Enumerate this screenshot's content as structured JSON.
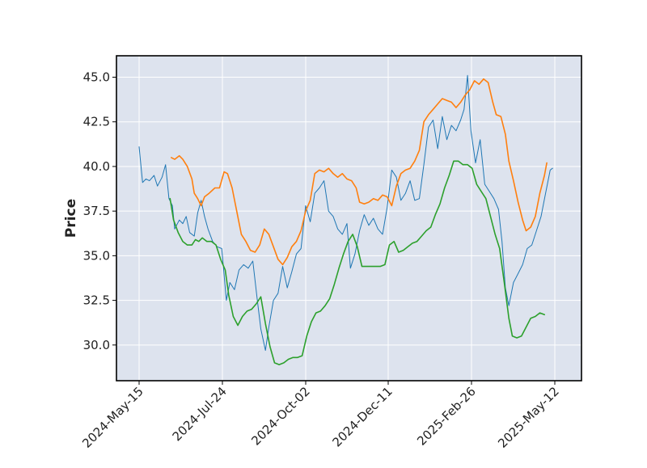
{
  "chart_data": {
    "type": "line",
    "title": "",
    "xlabel": "",
    "ylabel": "Price",
    "x_type": "date",
    "x_tick_labels": [
      "2024-May-15",
      "2024-Jul-24",
      "2024-Oct-02",
      "2024-Dec-11",
      "2025-Feb-26",
      "2025-May-12"
    ],
    "ylim": [
      28.0,
      46.2
    ],
    "y_ticks": [
      30.0,
      32.5,
      35.0,
      37.5,
      40.0,
      42.5,
      45.0
    ],
    "y_tick_labels": [
      "30.0",
      "32.5",
      "35.0",
      "37.5",
      "40.0",
      "42.5",
      "45.0"
    ],
    "grid": true,
    "legend": "none",
    "colors": {
      "background": "#dde3ee",
      "grid": "#ffffff",
      "frame": "#000000"
    },
    "series": [
      {
        "color": "#1f77b4",
        "stroke": "thin",
        "points": [
          [
            "2024-05-15",
            41.1
          ],
          [
            "2024-05-18",
            39.1
          ],
          [
            "2024-05-21",
            39.3
          ],
          [
            "2024-05-24",
            39.2
          ],
          [
            "2024-05-28",
            39.5
          ],
          [
            "2024-05-31",
            38.9
          ],
          [
            "2024-06-04",
            39.4
          ],
          [
            "2024-06-07",
            40.1
          ],
          [
            "2024-06-10",
            38.2
          ],
          [
            "2024-06-13",
            37.8
          ],
          [
            "2024-06-15",
            36.5
          ],
          [
            "2024-06-19",
            37.0
          ],
          [
            "2024-06-22",
            36.8
          ],
          [
            "2024-06-25",
            37.2
          ],
          [
            "2024-06-28",
            36.3
          ],
          [
            "2024-07-02",
            36.1
          ],
          [
            "2024-07-05",
            37.4
          ],
          [
            "2024-07-08",
            38.1
          ],
          [
            "2024-07-11",
            37.2
          ],
          [
            "2024-07-14",
            36.5
          ],
          [
            "2024-07-18",
            35.8
          ],
          [
            "2024-07-22",
            35.5
          ],
          [
            "2024-07-26",
            35.4
          ],
          [
            "2024-07-30",
            32.5
          ],
          [
            "2024-08-02",
            33.5
          ],
          [
            "2024-08-06",
            33.1
          ],
          [
            "2024-08-10",
            34.2
          ],
          [
            "2024-08-14",
            34.5
          ],
          [
            "2024-08-18",
            34.3
          ],
          [
            "2024-08-22",
            34.7
          ],
          [
            "2024-08-26",
            32.5
          ],
          [
            "2024-08-29",
            30.9
          ],
          [
            "2024-09-02",
            29.7
          ],
          [
            "2024-09-05",
            31.0
          ],
          [
            "2024-09-09",
            32.5
          ],
          [
            "2024-09-13",
            32.9
          ],
          [
            "2024-09-17",
            34.4
          ],
          [
            "2024-09-21",
            33.2
          ],
          [
            "2024-09-25",
            34.1
          ],
          [
            "2024-09-29",
            35.1
          ],
          [
            "2024-10-03",
            35.4
          ],
          [
            "2024-10-07",
            37.8
          ],
          [
            "2024-10-11",
            36.9
          ],
          [
            "2024-10-15",
            38.5
          ],
          [
            "2024-10-19",
            38.8
          ],
          [
            "2024-10-23",
            39.2
          ],
          [
            "2024-10-27",
            37.5
          ],
          [
            "2024-10-31",
            37.2
          ],
          [
            "2024-11-04",
            36.5
          ],
          [
            "2024-11-08",
            36.2
          ],
          [
            "2024-11-12",
            36.8
          ],
          [
            "2024-11-15",
            34.3
          ],
          [
            "2024-11-19",
            35.1
          ],
          [
            "2024-11-23",
            36.4
          ],
          [
            "2024-11-27",
            37.3
          ],
          [
            "2024-12-01",
            36.7
          ],
          [
            "2024-12-05",
            37.1
          ],
          [
            "2024-12-09",
            36.5
          ],
          [
            "2024-12-13",
            36.2
          ],
          [
            "2024-12-17",
            37.7
          ],
          [
            "2024-12-21",
            39.8
          ],
          [
            "2024-12-25",
            39.4
          ],
          [
            "2024-12-29",
            38.1
          ],
          [
            "2025-01-02",
            38.5
          ],
          [
            "2025-01-06",
            39.2
          ],
          [
            "2025-01-10",
            38.1
          ],
          [
            "2025-01-14",
            38.2
          ],
          [
            "2025-01-18",
            40.1
          ],
          [
            "2025-01-22",
            42.2
          ],
          [
            "2025-01-26",
            42.6
          ],
          [
            "2025-01-30",
            41.0
          ],
          [
            "2025-02-03",
            42.8
          ],
          [
            "2025-02-07",
            41.5
          ],
          [
            "2025-02-11",
            42.3
          ],
          [
            "2025-02-15",
            42.0
          ],
          [
            "2025-02-19",
            42.6
          ],
          [
            "2025-02-22",
            43.2
          ],
          [
            "2025-02-25",
            45.1
          ],
          [
            "2025-02-28",
            42.0
          ],
          [
            "2025-03-04",
            40.2
          ],
          [
            "2025-03-08",
            41.5
          ],
          [
            "2025-03-12",
            39.0
          ],
          [
            "2025-03-16",
            38.6
          ],
          [
            "2025-03-20",
            38.2
          ],
          [
            "2025-03-24",
            37.6
          ],
          [
            "2025-03-27",
            35.8
          ],
          [
            "2025-03-30",
            33.2
          ],
          [
            "2025-04-02",
            32.2
          ],
          [
            "2025-04-06",
            33.5
          ],
          [
            "2025-04-10",
            34.0
          ],
          [
            "2025-04-14",
            34.5
          ],
          [
            "2025-04-18",
            35.4
          ],
          [
            "2025-04-22",
            35.6
          ],
          [
            "2025-04-26",
            36.4
          ],
          [
            "2025-04-30",
            37.2
          ],
          [
            "2025-05-04",
            38.5
          ],
          [
            "2025-05-08",
            39.8
          ],
          [
            "2025-05-10",
            39.9
          ]
        ]
      },
      {
        "color": "#ff7f0e",
        "stroke": "medium",
        "points": [
          [
            "2024-06-12",
            40.5
          ],
          [
            "2024-06-15",
            40.4
          ],
          [
            "2024-06-19",
            40.6
          ],
          [
            "2024-06-22",
            40.4
          ],
          [
            "2024-06-26",
            40.0
          ],
          [
            "2024-06-30",
            39.3
          ],
          [
            "2024-07-02",
            38.5
          ],
          [
            "2024-07-05",
            38.2
          ],
          [
            "2024-07-08",
            37.8
          ],
          [
            "2024-07-11",
            38.3
          ],
          [
            "2024-07-15",
            38.5
          ],
          [
            "2024-07-20",
            38.8
          ],
          [
            "2024-07-24",
            38.8
          ],
          [
            "2024-07-28",
            39.7
          ],
          [
            "2024-07-31",
            39.6
          ],
          [
            "2024-08-04",
            38.8
          ],
          [
            "2024-08-08",
            37.5
          ],
          [
            "2024-08-12",
            36.2
          ],
          [
            "2024-08-16",
            35.8
          ],
          [
            "2024-08-20",
            35.3
          ],
          [
            "2024-08-24",
            35.2
          ],
          [
            "2024-08-28",
            35.6
          ],
          [
            "2024-09-01",
            36.5
          ],
          [
            "2024-09-05",
            36.2
          ],
          [
            "2024-09-09",
            35.5
          ],
          [
            "2024-09-13",
            34.8
          ],
          [
            "2024-09-17",
            34.5
          ],
          [
            "2024-09-21",
            34.9
          ],
          [
            "2024-09-25",
            35.5
          ],
          [
            "2024-09-29",
            35.8
          ],
          [
            "2024-10-03",
            36.4
          ],
          [
            "2024-10-07",
            37.5
          ],
          [
            "2024-10-11",
            38.1
          ],
          [
            "2024-10-15",
            39.6
          ],
          [
            "2024-10-19",
            39.8
          ],
          [
            "2024-10-23",
            39.7
          ],
          [
            "2024-10-27",
            39.9
          ],
          [
            "2024-10-31",
            39.6
          ],
          [
            "2024-11-04",
            39.4
          ],
          [
            "2024-11-08",
            39.6
          ],
          [
            "2024-11-12",
            39.3
          ],
          [
            "2024-11-16",
            39.2
          ],
          [
            "2024-11-20",
            38.8
          ],
          [
            "2024-11-23",
            38.0
          ],
          [
            "2024-11-27",
            37.9
          ],
          [
            "2024-12-01",
            38.0
          ],
          [
            "2024-12-05",
            38.2
          ],
          [
            "2024-12-09",
            38.1
          ],
          [
            "2024-12-13",
            38.4
          ],
          [
            "2024-12-17",
            38.3
          ],
          [
            "2024-12-21",
            37.8
          ],
          [
            "2024-12-25",
            38.9
          ],
          [
            "2024-12-29",
            39.6
          ],
          [
            "2025-01-02",
            39.8
          ],
          [
            "2025-01-06",
            39.9
          ],
          [
            "2025-01-10",
            40.3
          ],
          [
            "2025-01-14",
            40.9
          ],
          [
            "2025-01-18",
            42.5
          ],
          [
            "2025-01-22",
            42.9
          ],
          [
            "2025-01-26",
            43.2
          ],
          [
            "2025-01-30",
            43.5
          ],
          [
            "2025-02-03",
            43.8
          ],
          [
            "2025-02-07",
            43.7
          ],
          [
            "2025-02-11",
            43.6
          ],
          [
            "2025-02-15",
            43.3
          ],
          [
            "2025-02-19",
            43.6
          ],
          [
            "2025-02-23",
            44.0
          ],
          [
            "2025-02-27",
            44.3
          ],
          [
            "2025-03-03",
            44.8
          ],
          [
            "2025-03-07",
            44.6
          ],
          [
            "2025-03-11",
            44.9
          ],
          [
            "2025-03-15",
            44.7
          ],
          [
            "2025-03-19",
            43.6
          ],
          [
            "2025-03-22",
            42.9
          ],
          [
            "2025-03-26",
            42.8
          ],
          [
            "2025-03-30",
            41.8
          ],
          [
            "2025-04-02",
            40.3
          ],
          [
            "2025-04-06",
            39.2
          ],
          [
            "2025-04-10",
            38.0
          ],
          [
            "2025-04-14",
            37.0
          ],
          [
            "2025-04-17",
            36.4
          ],
          [
            "2025-04-21",
            36.6
          ],
          [
            "2025-04-25",
            37.2
          ],
          [
            "2025-04-29",
            38.5
          ],
          [
            "2025-05-03",
            39.5
          ],
          [
            "2025-05-05",
            40.2
          ]
        ]
      },
      {
        "color": "#2ca02c",
        "stroke": "medium",
        "points": [
          [
            "2024-06-11",
            38.2
          ],
          [
            "2024-06-14",
            37.0
          ],
          [
            "2024-06-18",
            36.3
          ],
          [
            "2024-06-22",
            35.8
          ],
          [
            "2024-06-26",
            35.6
          ],
          [
            "2024-06-30",
            35.6
          ],
          [
            "2024-07-03",
            35.9
          ],
          [
            "2024-07-06",
            35.8
          ],
          [
            "2024-07-09",
            36.0
          ],
          [
            "2024-07-13",
            35.8
          ],
          [
            "2024-07-17",
            35.8
          ],
          [
            "2024-07-21",
            35.6
          ],
          [
            "2024-07-25",
            34.8
          ],
          [
            "2024-07-29",
            34.2
          ],
          [
            "2024-08-01",
            32.8
          ],
          [
            "2024-08-05",
            31.6
          ],
          [
            "2024-08-09",
            31.1
          ],
          [
            "2024-08-13",
            31.6
          ],
          [
            "2024-08-17",
            31.9
          ],
          [
            "2024-08-21",
            32.0
          ],
          [
            "2024-08-25",
            32.3
          ],
          [
            "2024-08-29",
            32.7
          ],
          [
            "2024-09-02",
            31.2
          ],
          [
            "2024-09-06",
            29.9
          ],
          [
            "2024-09-10",
            29.0
          ],
          [
            "2024-09-14",
            28.9
          ],
          [
            "2024-09-18",
            29.0
          ],
          [
            "2024-09-22",
            29.2
          ],
          [
            "2024-09-26",
            29.3
          ],
          [
            "2024-09-30",
            29.3
          ],
          [
            "2024-10-04",
            29.4
          ],
          [
            "2024-10-08",
            30.5
          ],
          [
            "2024-10-12",
            31.3
          ],
          [
            "2024-10-16",
            31.8
          ],
          [
            "2024-10-20",
            31.9
          ],
          [
            "2024-10-24",
            32.2
          ],
          [
            "2024-10-28",
            32.6
          ],
          [
            "2024-11-01",
            33.4
          ],
          [
            "2024-11-05",
            34.3
          ],
          [
            "2024-11-09",
            35.1
          ],
          [
            "2024-11-13",
            35.8
          ],
          [
            "2024-11-17",
            36.2
          ],
          [
            "2024-11-21",
            35.5
          ],
          [
            "2024-11-25",
            34.4
          ],
          [
            "2024-11-29",
            34.4
          ],
          [
            "2024-12-03",
            34.4
          ],
          [
            "2024-12-07",
            34.4
          ],
          [
            "2024-12-11",
            34.4
          ],
          [
            "2024-12-15",
            34.5
          ],
          [
            "2024-12-19",
            35.6
          ],
          [
            "2024-12-23",
            35.8
          ],
          [
            "2024-12-27",
            35.2
          ],
          [
            "2024-12-31",
            35.3
          ],
          [
            "2025-01-04",
            35.5
          ],
          [
            "2025-01-08",
            35.7
          ],
          [
            "2025-01-12",
            35.8
          ],
          [
            "2025-01-16",
            36.1
          ],
          [
            "2025-01-20",
            36.4
          ],
          [
            "2025-01-24",
            36.6
          ],
          [
            "2025-01-28",
            37.3
          ],
          [
            "2025-02-01",
            37.9
          ],
          [
            "2025-02-05",
            38.8
          ],
          [
            "2025-02-09",
            39.5
          ],
          [
            "2025-02-13",
            40.3
          ],
          [
            "2025-02-17",
            40.3
          ],
          [
            "2025-02-21",
            40.1
          ],
          [
            "2025-02-25",
            40.1
          ],
          [
            "2025-03-01",
            39.9
          ],
          [
            "2025-03-05",
            39.0
          ],
          [
            "2025-03-09",
            38.6
          ],
          [
            "2025-03-13",
            38.2
          ],
          [
            "2025-03-17",
            37.2
          ],
          [
            "2025-03-21",
            36.2
          ],
          [
            "2025-03-25",
            35.4
          ],
          [
            "2025-03-29",
            33.5
          ],
          [
            "2025-04-02",
            31.5
          ],
          [
            "2025-04-05",
            30.5
          ],
          [
            "2025-04-09",
            30.4
          ],
          [
            "2025-04-13",
            30.5
          ],
          [
            "2025-04-17",
            31.0
          ],
          [
            "2025-04-21",
            31.5
          ],
          [
            "2025-04-25",
            31.6
          ],
          [
            "2025-04-29",
            31.8
          ],
          [
            "2025-05-03",
            31.7
          ]
        ]
      }
    ]
  }
}
